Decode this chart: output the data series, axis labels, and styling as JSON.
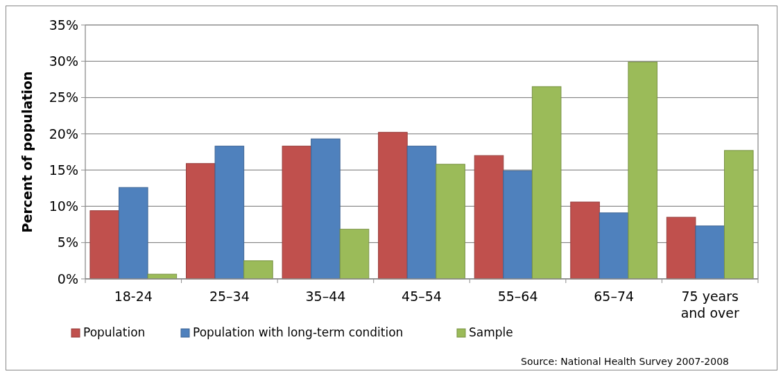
{
  "chart_data": {
    "type": "bar",
    "ylabel": "Percent of population",
    "categories": [
      "18-24",
      "25–34",
      "35–44",
      "45–54",
      "55–64",
      "65–74",
      "75 years and over"
    ],
    "series": [
      {
        "name": "Population",
        "color": "#c0504d",
        "values": [
          9.4,
          15.9,
          18.3,
          20.2,
          17.0,
          10.6,
          8.5
        ]
      },
      {
        "name": "Population with long-term condition",
        "color": "#4f81bd",
        "values": [
          12.6,
          18.3,
          19.3,
          18.3,
          14.9,
          9.1,
          7.3
        ]
      },
      {
        "name": "Sample",
        "color": "#9bbb59",
        "values": [
          0.65,
          2.5,
          6.85,
          15.8,
          26.5,
          29.9,
          17.7
        ]
      }
    ],
    "ylim": [
      0,
      35
    ],
    "yticks": [
      {
        "value": 0,
        "label": "0%"
      },
      {
        "value": 5,
        "label": "5%"
      },
      {
        "value": 10,
        "label": "10%"
      },
      {
        "value": 15,
        "label": "15%"
      },
      {
        "value": 20,
        "label": "20%"
      },
      {
        "value": 25,
        "label": "25%"
      },
      {
        "value": 30,
        "label": "30%"
      },
      {
        "value": 35,
        "label": "35%"
      }
    ],
    "grid": "y",
    "legend": "bottom",
    "annotations": [
      "Source: National Health Survey 2007-2008"
    ]
  }
}
